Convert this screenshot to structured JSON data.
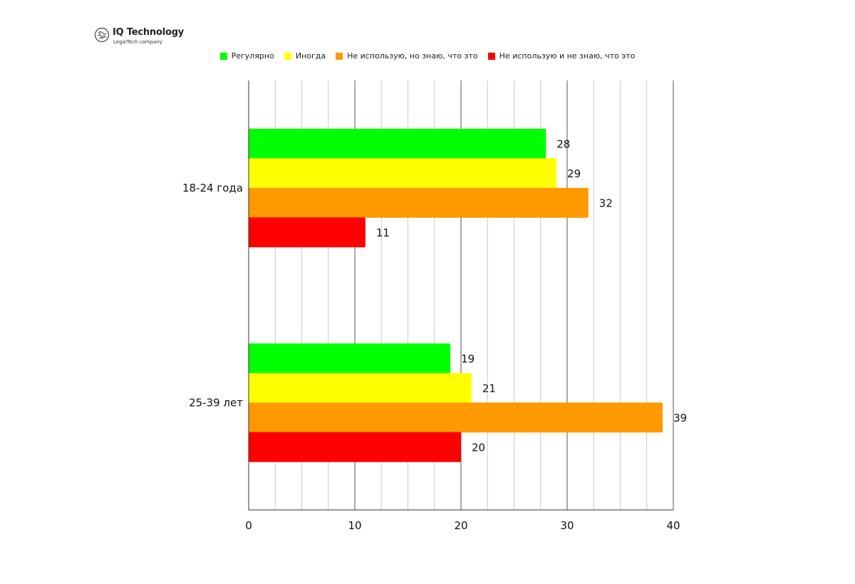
{
  "logo": {
    "name": "IQ Technology",
    "tagline": "LegalTech company"
  },
  "chart_data": {
    "type": "bar",
    "orientation": "horizontal",
    "categories": [
      "18-24 года",
      "25-39 лет"
    ],
    "series": [
      {
        "name": "Регулярно",
        "color": "#00ff00",
        "values": [
          28,
          19
        ]
      },
      {
        "name": "Иногда",
        "color": "#ffff00",
        "values": [
          29,
          21
        ]
      },
      {
        "name": "Не использую, но знаю, что это",
        "color": "#ff9900",
        "values": [
          32,
          39
        ]
      },
      {
        "name": "Не использую и не знаю, что это",
        "color": "#ff0000",
        "values": [
          11,
          20
        ]
      }
    ],
    "xlim": [
      0,
      40
    ],
    "xticks": [
      0,
      10,
      20,
      30,
      40
    ],
    "minor_step": 2.5,
    "grid": true,
    "legend": "top-center",
    "data_labels": true
  }
}
